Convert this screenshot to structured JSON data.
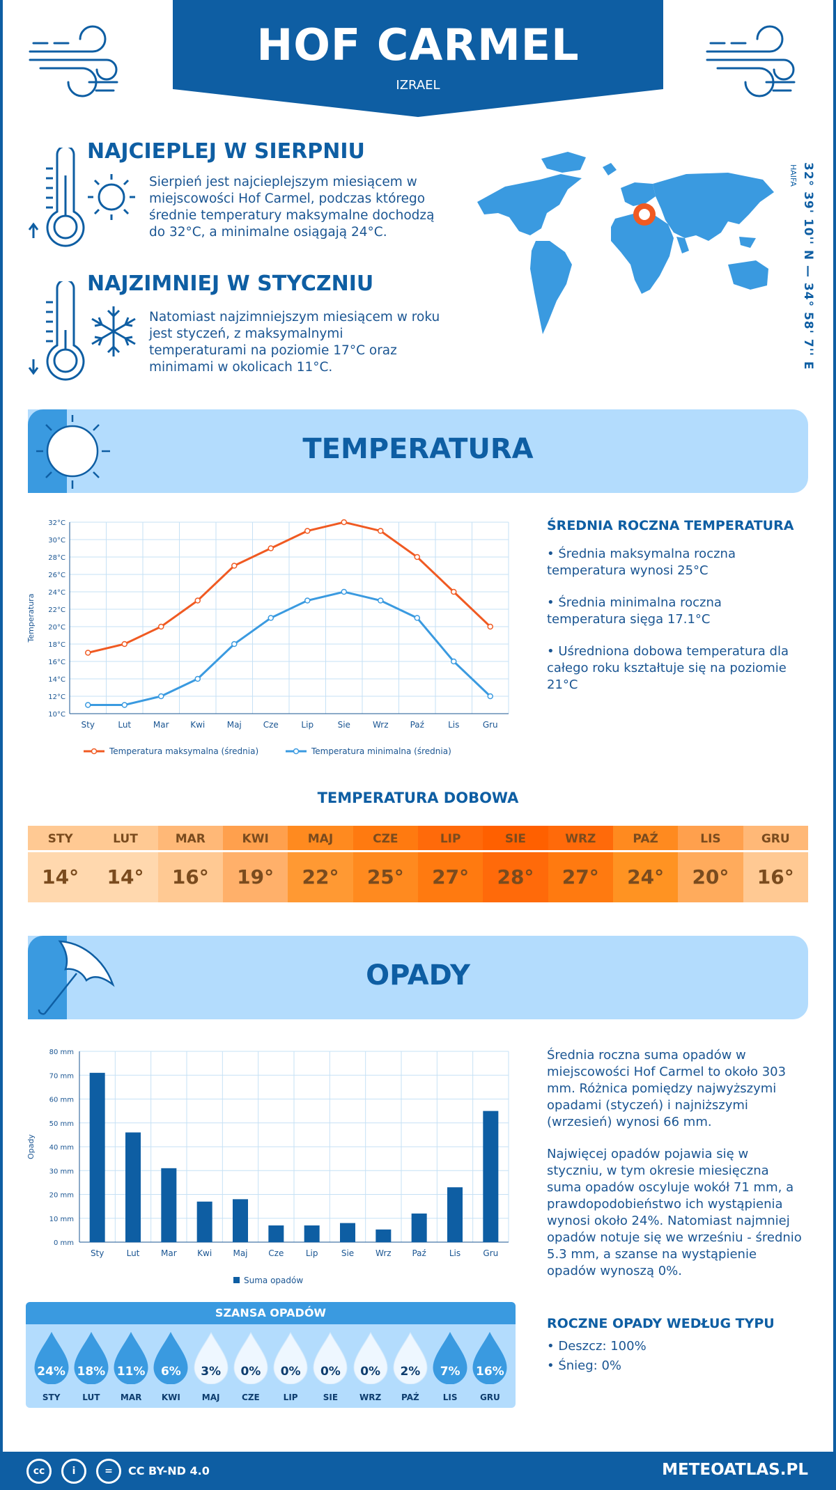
{
  "header": {
    "title": "HOF CARMEL",
    "country": "IZRAEL"
  },
  "warmest": {
    "heading": "NAJCIEPLEJ W SIERPNIU",
    "text": "Sierpień jest najcieplejszym miesiącem w miejscowości Hof Carmel, podczas którego średnie temperatury maksymalne dochodzą do 32°C, a minimalne osiągają 24°C."
  },
  "coldest": {
    "heading": "NAJZIMNIEJ W STYCZNIU",
    "text": "Natomiast najzimniejszym miesiącem w roku jest styczeń, z maksymalnymi temperaturami na poziomie 17°C oraz minimami w okolicach 11°C."
  },
  "location": {
    "coords": "32° 39' 10'' N — 34° 58' 7'' E",
    "region": "HAIFA"
  },
  "temperature_section": {
    "title": "TEMPERATURA",
    "side_heading": "ŚREDNIA ROCZNA TEMPERATURA",
    "bullets": [
      "• Średnia maksymalna roczna temperatura wynosi 25°C",
      "• Średnia minimalna roczna temperatura sięga 17.1°C",
      "• Uśredniona dobowa temperatura dla całego roku kształtuje się na poziomie 21°C"
    ],
    "daily_heading": "TEMPERATURA DOBOWA",
    "daily": [
      {
        "m": "STY",
        "v": "14°",
        "c1": "#ffc993",
        "c2": "#ffd8ae"
      },
      {
        "m": "LUT",
        "v": "14°",
        "c1": "#ffc993",
        "c2": "#ffd8ae"
      },
      {
        "m": "MAR",
        "v": "16°",
        "c1": "#ffb877",
        "c2": "#ffc993"
      },
      {
        "m": "KWI",
        "v": "19°",
        "c1": "#ffa04d",
        "c2": "#ffb06a"
      },
      {
        "m": "MAJ",
        "v": "22°",
        "c1": "#ff8a1f",
        "c2": "#ff9933"
      },
      {
        "m": "CZE",
        "v": "25°",
        "c1": "#ff7a10",
        "c2": "#ff8a1f"
      },
      {
        "m": "LIP",
        "v": "27°",
        "c1": "#ff6a0a",
        "c2": "#ff7a10"
      },
      {
        "m": "SIE",
        "v": "28°",
        "c1": "#ff6000",
        "c2": "#ff6a0a"
      },
      {
        "m": "WRZ",
        "v": "27°",
        "c1": "#ff6a0a",
        "c2": "#ff7a10"
      },
      {
        "m": "PAŹ",
        "v": "24°",
        "c1": "#ff8a1f",
        "c2": "#ff9322"
      },
      {
        "m": "LIS",
        "v": "20°",
        "c1": "#ffa04d",
        "c2": "#ffab5c"
      },
      {
        "m": "GRU",
        "v": "16°",
        "c1": "#ffb877",
        "c2": "#ffc993"
      }
    ]
  },
  "precip_section": {
    "title": "OPADY",
    "para1": "Średnia roczna suma opadów w miejscowości Hof Carmel to około 303 mm. Różnica pomiędzy najwyższymi opadami (styczeń) i najniższymi (wrzesień) wynosi 66 mm.",
    "para2": "Najwięcej opadów pojawia się w styczniu, w tym okresie miesięczna suma opadów oscyluje wokół 71 mm, a prawdopodobieństwo ich wystąpienia wynosi około 24%. Natomiast najmniej opadów notuje się we wrześniu - średnio 5.3 mm, a szanse na wystąpienie opadów wynoszą 0%.",
    "type_heading": "ROCZNE OPADY WEDŁUG TYPU",
    "rain": "• Deszcz: 100%",
    "snow": "• Śnieg: 0%",
    "chance_heading": "SZANSA OPADÓW",
    "chances": [
      {
        "m": "STY",
        "v": "24%"
      },
      {
        "m": "LUT",
        "v": "18%"
      },
      {
        "m": "MAR",
        "v": "11%"
      },
      {
        "m": "KWI",
        "v": "6%"
      },
      {
        "m": "MAJ",
        "v": "3%"
      },
      {
        "m": "CZE",
        "v": "0%"
      },
      {
        "m": "LIP",
        "v": "0%"
      },
      {
        "m": "SIE",
        "v": "0%"
      },
      {
        "m": "WRZ",
        "v": "0%"
      },
      {
        "m": "PAŹ",
        "v": "2%"
      },
      {
        "m": "LIS",
        "v": "7%"
      },
      {
        "m": "GRU",
        "v": "16%"
      }
    ]
  },
  "chart_data": [
    {
      "type": "line",
      "x": [
        "Sty",
        "Lut",
        "Mar",
        "Kwi",
        "Maj",
        "Cze",
        "Lip",
        "Sie",
        "Wrz",
        "Paź",
        "Lis",
        "Gru"
      ],
      "series": [
        {
          "name": "Temperatura maksymalna (średnia)",
          "color": "#f05a22",
          "values": [
            17,
            18,
            20,
            23,
            27,
            29,
            31,
            32,
            31,
            28,
            24,
            20
          ]
        },
        {
          "name": "Temperatura minimalna (średnia)",
          "color": "#3a9ae0",
          "values": [
            11,
            11,
            12,
            14,
            18,
            21,
            23,
            24,
            23,
            21,
            16,
            12
          ]
        }
      ],
      "ylabel": "Temperatura",
      "ylim": [
        10,
        32
      ],
      "yticks": [
        "10°C",
        "12°C",
        "14°C",
        "16°C",
        "18°C",
        "20°C",
        "22°C",
        "24°C",
        "26°C",
        "28°C",
        "30°C",
        "32°C"
      ],
      "grid": true,
      "legend": "bottom"
    },
    {
      "type": "bar",
      "categories": [
        "Sty",
        "Lut",
        "Mar",
        "Kwi",
        "Maj",
        "Cze",
        "Lip",
        "Sie",
        "Wrz",
        "Paź",
        "Lis",
        "Gru"
      ],
      "series": [
        {
          "name": "Suma opadów",
          "color": "#0e5ea3",
          "values": [
            71,
            46,
            31,
            17,
            18,
            7,
            7,
            8,
            5.3,
            12,
            23,
            55
          ]
        }
      ],
      "ylabel": "Opady",
      "ylim": [
        0,
        80
      ],
      "yticks": [
        "0 mm",
        "10 mm",
        "20 mm",
        "30 mm",
        "40 mm",
        "50 mm",
        "60 mm",
        "70 mm",
        "80 mm"
      ],
      "grid": true,
      "legend": "bottom"
    }
  ],
  "footer": {
    "license": "CC BY-ND 4.0",
    "site": "METEOATLAS.PL"
  }
}
